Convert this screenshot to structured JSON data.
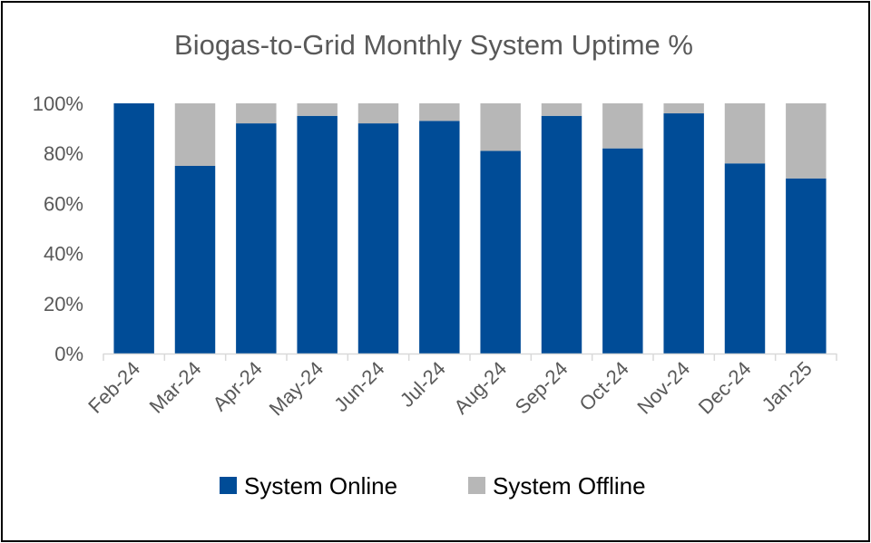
{
  "chart_data": {
    "type": "bar",
    "stacked": true,
    "title": "Biogas-to-Grid Monthly System Uptime %",
    "xlabel": "",
    "ylabel": "",
    "ylim": [
      0,
      100
    ],
    "y_ticks": [
      0,
      20,
      40,
      60,
      80,
      100
    ],
    "y_tick_labels": [
      "0%",
      "20%",
      "40%",
      "60%",
      "80%",
      "100%"
    ],
    "grid": false,
    "legend_position": "bottom",
    "categories": [
      "Feb-24",
      "Mar-24",
      "Apr-24",
      "May-24",
      "Jun-24",
      "Jul-24",
      "Aug-24",
      "Sep-24",
      "Oct-24",
      "Nov-24",
      "Dec-24",
      "Jan-25"
    ],
    "series": [
      {
        "name": "System Online",
        "color": "#004C97",
        "values": [
          100,
          75,
          92,
          95,
          92,
          93,
          81,
          95,
          82,
          96,
          76,
          70
        ]
      },
      {
        "name": "System Offline",
        "color": "#B7B7B7",
        "values": [
          0,
          25,
          8,
          5,
          8,
          7,
          19,
          5,
          18,
          4,
          24,
          30
        ]
      }
    ]
  }
}
